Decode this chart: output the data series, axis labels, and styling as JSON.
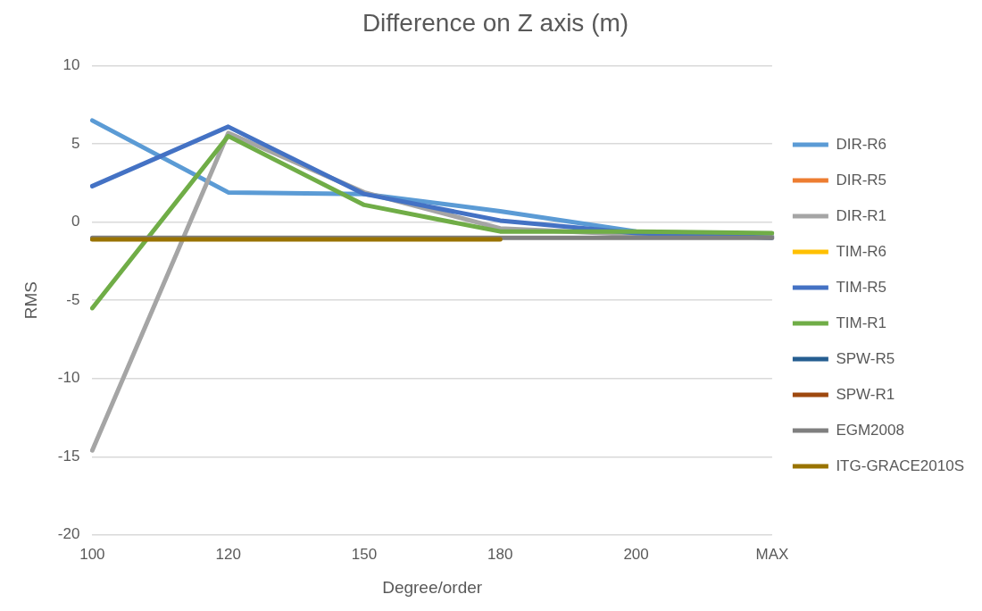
{
  "chart_data": {
    "type": "line",
    "title": "Difference on Z axis (m)",
    "xlabel": "Degree/order",
    "ylabel": "RMS",
    "categories": [
      "100",
      "120",
      "150",
      "180",
      "200",
      "MAX"
    ],
    "ylim": [
      -20,
      10
    ],
    "yticks": [
      -20,
      -15,
      -10,
      -5,
      0,
      5,
      10
    ],
    "grid": "y",
    "legend": "right",
    "marker": "none",
    "line_style": "solid",
    "series": [
      {
        "name": "DIR-R6",
        "color": "#5b9bd5",
        "values": [
          6.5,
          1.9,
          1.8,
          0.7,
          -0.6,
          -0.9
        ]
      },
      {
        "name": "DIR-R5",
        "color": "#ed7d31",
        "values": [
          null,
          null,
          null,
          null,
          null,
          null
        ]
      },
      {
        "name": "DIR-R1",
        "color": "#a5a5a5",
        "values": [
          -14.6,
          5.7,
          1.9,
          -0.4,
          -0.8,
          -0.9
        ]
      },
      {
        "name": "TIM-R6",
        "color": "#ffc000",
        "values": [
          null,
          null,
          null,
          null,
          null,
          null
        ]
      },
      {
        "name": "TIM-R5",
        "color": "#4472c4",
        "values": [
          2.3,
          6.1,
          1.8,
          0.1,
          -0.7,
          -1.0
        ]
      },
      {
        "name": "TIM-R1",
        "color": "#70ad47",
        "values": [
          -5.5,
          5.5,
          1.1,
          -0.6,
          -0.6,
          -0.7
        ]
      },
      {
        "name": "SPW-R5",
        "color": "#255e91",
        "values": [
          null,
          null,
          null,
          null,
          null,
          null
        ]
      },
      {
        "name": "SPW-R1",
        "color": "#9e480e",
        "values": [
          null,
          null,
          null,
          null,
          null,
          null
        ]
      },
      {
        "name": "EGM2008",
        "color": "#7f7f7f",
        "values": [
          -1.0,
          -1.0,
          -1.0,
          -1.0,
          -1.0,
          -1.0
        ]
      },
      {
        "name": "ITG-GRACE2010S",
        "color": "#997300",
        "values": [
          -1.1,
          -1.1,
          -1.1,
          -1.1,
          null,
          null
        ]
      }
    ]
  }
}
